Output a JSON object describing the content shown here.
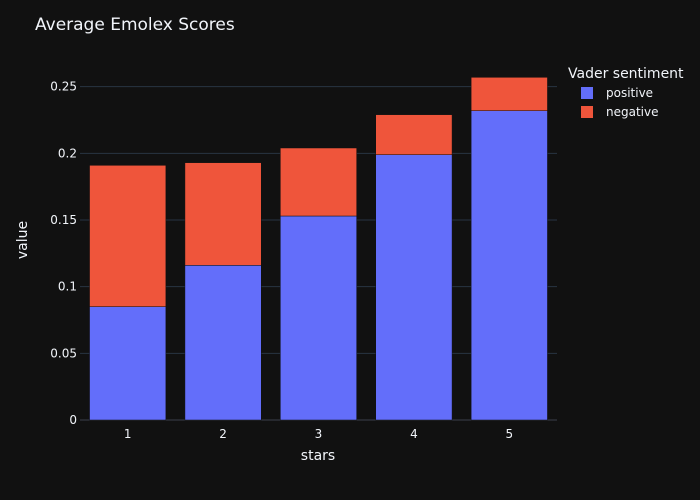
{
  "chart_data": {
    "type": "bar",
    "barmode": "stack",
    "title": "Average Emolex Scores",
    "xlabel": "stars",
    "ylabel": "value",
    "categories": [
      "1",
      "2",
      "3",
      "4",
      "5"
    ],
    "ylim": [
      0,
      0.27
    ],
    "yticks": [
      0,
      0.05,
      0.1,
      0.15,
      0.2,
      0.25
    ],
    "ytick_labels": [
      "0",
      "0.05",
      "0.1",
      "0.15",
      "0.2",
      "0.25"
    ],
    "grid": true,
    "legend": {
      "title": "Vader sentiment",
      "placement": "top-right"
    },
    "series": [
      {
        "name": "positive",
        "color": "#636efa",
        "values": [
          0.085,
          0.116,
          0.153,
          0.199,
          0.232
        ]
      },
      {
        "name": "negative",
        "color": "#ef553b",
        "values": [
          0.106,
          0.077,
          0.051,
          0.03,
          0.025
        ]
      }
    ]
  }
}
